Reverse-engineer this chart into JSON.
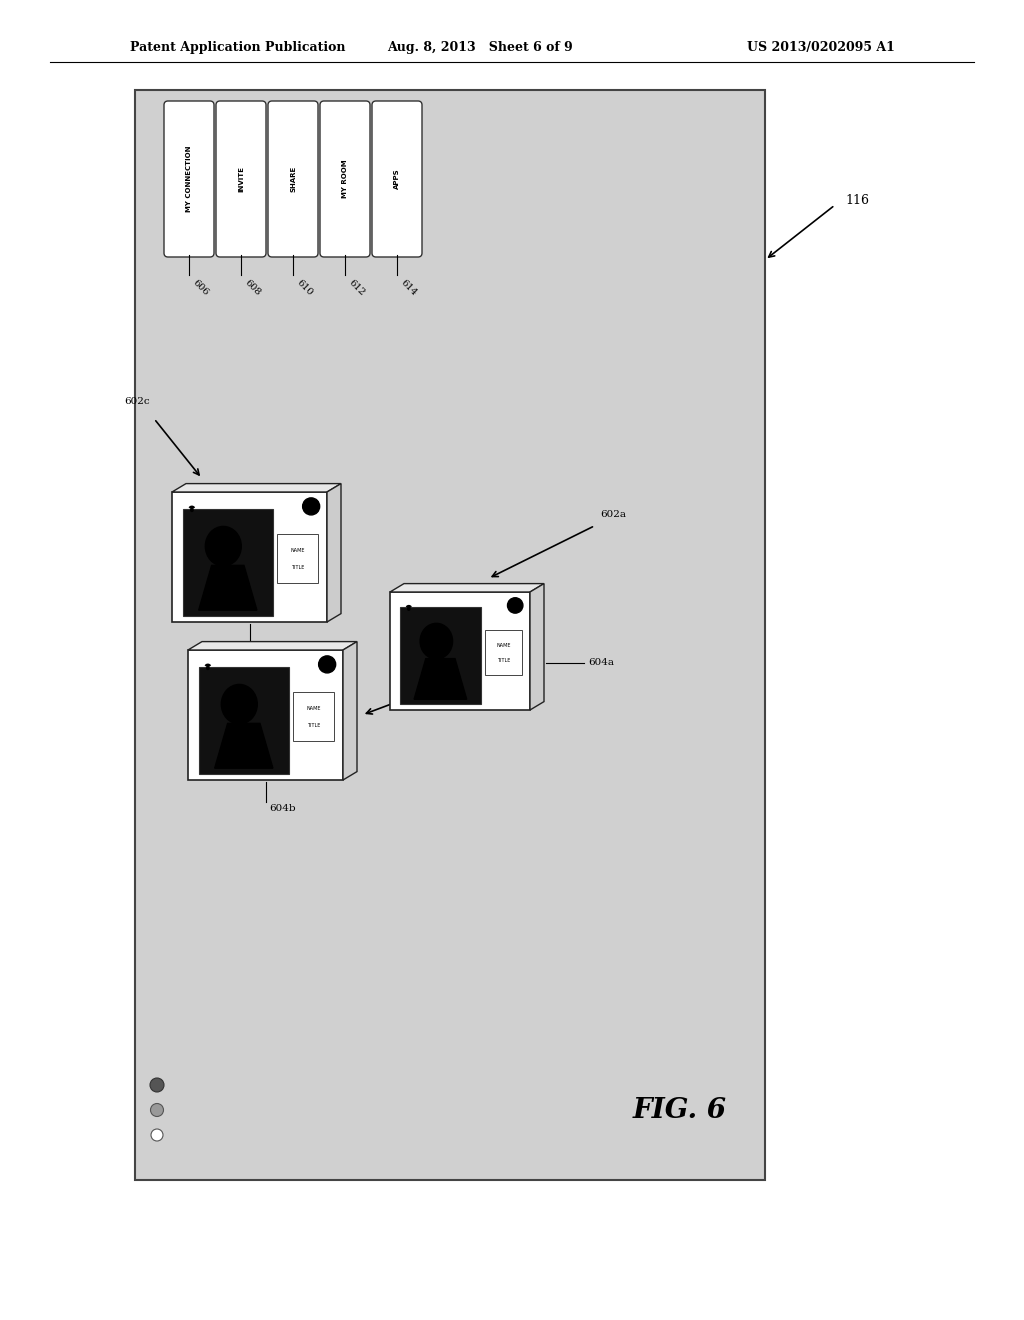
{
  "page_width": 10.24,
  "page_height": 13.2,
  "background_color": "#ffffff",
  "header_text_left": "Patent Application Publication",
  "header_text_mid": "Aug. 8, 2013   Sheet 6 of 9",
  "header_text_right": "US 2013/0202095 A1",
  "fig_label": "FIG. 6",
  "diagram_bg": "#d0d0d0",
  "diagram_border": "#444444",
  "ref_116": "116",
  "tabs": [
    {
      "label": "MY CONNECTION",
      "ref": "606"
    },
    {
      "label": "INVITE",
      "ref": "608"
    },
    {
      "label": "SHARE",
      "ref": "610"
    },
    {
      "label": "MY ROOM",
      "ref": "612"
    },
    {
      "label": "APPS",
      "ref": "614"
    }
  ]
}
